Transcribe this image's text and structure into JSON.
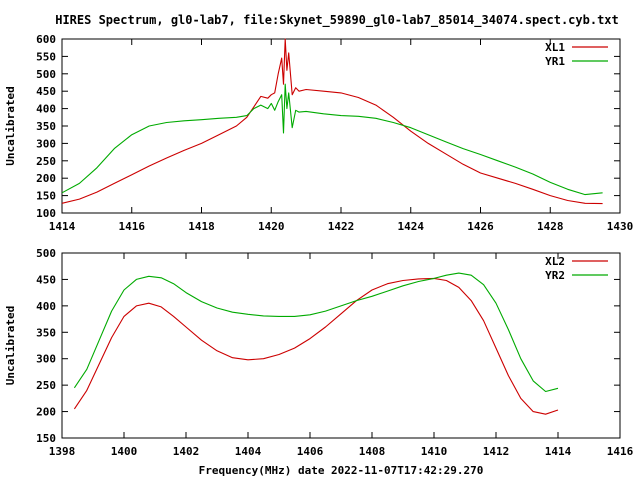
{
  "title": "HIRES Spectrum, gl0-lab7, file:Skynet_59890_gl0-lab7_85014_34074.spect.cyb.txt",
  "colors": {
    "red": "#cc0000",
    "green": "#00aa00",
    "axis": "#000000"
  },
  "chart_data": [
    {
      "type": "line",
      "title": "HIRES Spectrum, gl0-lab7, file:Skynet_59890_gl0-lab7_85014_34074.spect.cyb.txt",
      "xlabel": "",
      "ylabel": "Uncalibrated",
      "xlim": [
        1414,
        1430
      ],
      "ylim": [
        100,
        600
      ],
      "x_ticks": [
        1414,
        1416,
        1418,
        1420,
        1422,
        1424,
        1426,
        1428,
        1430
      ],
      "y_ticks": [
        100,
        150,
        200,
        250,
        300,
        350,
        400,
        450,
        500,
        550,
        600
      ],
      "legend_position": "top-right",
      "grid": false,
      "series": [
        {
          "name": "XL1",
          "color": "#cc0000",
          "x": [
            1414.0,
            1414.5,
            1415.0,
            1415.5,
            1416.0,
            1416.5,
            1417.0,
            1417.5,
            1418.0,
            1418.5,
            1419.0,
            1419.3,
            1419.5,
            1419.7,
            1419.9,
            1420.0,
            1420.1,
            1420.2,
            1420.3,
            1420.35,
            1420.4,
            1420.45,
            1420.5,
            1420.6,
            1420.7,
            1420.8,
            1421.0,
            1421.5,
            1422.0,
            1422.5,
            1423.0,
            1423.5,
            1424.0,
            1424.5,
            1425.0,
            1425.5,
            1426.0,
            1426.5,
            1427.0,
            1427.5,
            1428.0,
            1428.5,
            1429.0,
            1429.5
          ],
          "y": [
            128,
            140,
            160,
            185,
            210,
            235,
            258,
            280,
            300,
            325,
            350,
            375,
            405,
            435,
            430,
            440,
            445,
            500,
            545,
            470,
            600,
            510,
            560,
            440,
            460,
            450,
            455,
            450,
            445,
            432,
            410,
            375,
            335,
            300,
            270,
            240,
            215,
            200,
            185,
            168,
            150,
            136,
            128,
            127
          ]
        },
        {
          "name": "YR1",
          "color": "#00aa00",
          "x": [
            1414.0,
            1414.5,
            1415.0,
            1415.5,
            1416.0,
            1416.5,
            1417.0,
            1417.5,
            1418.0,
            1418.5,
            1419.0,
            1419.3,
            1419.5,
            1419.7,
            1419.9,
            1420.0,
            1420.1,
            1420.2,
            1420.3,
            1420.35,
            1420.4,
            1420.45,
            1420.5,
            1420.6,
            1420.7,
            1420.8,
            1421.0,
            1421.5,
            1422.0,
            1422.5,
            1423.0,
            1423.5,
            1424.0,
            1424.5,
            1425.0,
            1425.5,
            1426.0,
            1426.5,
            1427.0,
            1427.5,
            1428.0,
            1428.5,
            1429.0,
            1429.5
          ],
          "y": [
            158,
            185,
            230,
            285,
            325,
            350,
            360,
            365,
            368,
            372,
            375,
            380,
            400,
            410,
            400,
            415,
            395,
            420,
            440,
            330,
            470,
            400,
            445,
            345,
            395,
            390,
            392,
            385,
            380,
            378,
            372,
            360,
            345,
            325,
            305,
            285,
            268,
            250,
            232,
            212,
            188,
            168,
            153,
            158
          ]
        }
      ]
    },
    {
      "type": "line",
      "title": "",
      "xlabel": "Frequency(MHz) date 2022-11-07T17:42:29.270",
      "ylabel": "Uncalibrated",
      "xlim": [
        1398,
        1416
      ],
      "ylim": [
        150,
        500
      ],
      "x_ticks": [
        1398,
        1400,
        1402,
        1404,
        1406,
        1408,
        1410,
        1412,
        1414,
        1416
      ],
      "y_ticks": [
        150,
        200,
        250,
        300,
        350,
        400,
        450,
        500
      ],
      "legend_position": "top-right",
      "grid": false,
      "series": [
        {
          "name": "XL2",
          "color": "#cc0000",
          "x": [
            1398.4,
            1398.8,
            1399.2,
            1399.6,
            1400.0,
            1400.4,
            1400.8,
            1401.2,
            1401.6,
            1402.0,
            1402.5,
            1403.0,
            1403.5,
            1404.0,
            1404.5,
            1405.0,
            1405.5,
            1406.0,
            1406.5,
            1407.0,
            1407.5,
            1408.0,
            1408.5,
            1409.0,
            1409.5,
            1410.0,
            1410.4,
            1410.8,
            1411.2,
            1411.6,
            1412.0,
            1412.4,
            1412.8,
            1413.2,
            1413.6,
            1414.0
          ],
          "y": [
            205,
            240,
            290,
            340,
            380,
            400,
            405,
            398,
            380,
            360,
            335,
            315,
            302,
            298,
            300,
            308,
            320,
            338,
            360,
            385,
            410,
            430,
            442,
            448,
            451,
            452,
            448,
            435,
            410,
            372,
            320,
            268,
            225,
            200,
            195,
            203
          ]
        },
        {
          "name": "YR2",
          "color": "#00aa00",
          "x": [
            1398.4,
            1398.8,
            1399.2,
            1399.6,
            1400.0,
            1400.4,
            1400.8,
            1401.2,
            1401.6,
            1402.0,
            1402.5,
            1403.0,
            1403.5,
            1404.0,
            1404.5,
            1405.0,
            1405.5,
            1406.0,
            1406.5,
            1407.0,
            1407.5,
            1408.0,
            1408.5,
            1409.0,
            1409.5,
            1410.0,
            1410.4,
            1410.8,
            1411.2,
            1411.6,
            1412.0,
            1412.4,
            1412.8,
            1413.2,
            1413.6,
            1414.0
          ],
          "y": [
            245,
            280,
            335,
            390,
            430,
            450,
            456,
            453,
            442,
            425,
            408,
            396,
            388,
            384,
            381,
            380,
            380,
            383,
            390,
            400,
            410,
            418,
            428,
            438,
            446,
            452,
            458,
            462,
            458,
            440,
            405,
            355,
            300,
            258,
            238,
            244
          ]
        }
      ]
    }
  ]
}
